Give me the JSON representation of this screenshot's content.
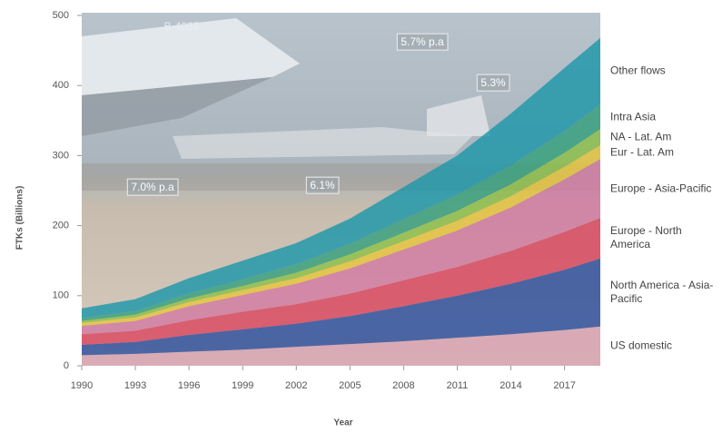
{
  "chart_data": {
    "type": "stacked_area",
    "y_label": "FTKs (Billions)",
    "x_label": "Year",
    "x": [
      1990,
      1993,
      1996,
      1999,
      2002,
      2005,
      2008,
      2011,
      2014,
      2017,
      2019
    ],
    "xlim": [
      1990,
      2019
    ],
    "xticks": [
      1990,
      1993,
      1996,
      1999,
      2002,
      2005,
      2008,
      2011,
      2014,
      2017
    ],
    "ylim": [
      0,
      500
    ],
    "yticks": [
      0,
      100,
      200,
      300,
      400,
      500
    ],
    "series": [
      {
        "name": "US domestic",
        "color": "#d9a3b3",
        "values": [
          15,
          17,
          20,
          23,
          27,
          31,
          35,
          40,
          45,
          51,
          56
        ]
      },
      {
        "name": "North America - Asia-Pacific",
        "color": "#2c4f9e",
        "values": [
          15,
          17,
          24,
          29,
          33,
          40,
          50,
          60,
          72,
          86,
          97
        ]
      },
      {
        "name": "Europe - North America",
        "color": "#d9475f",
        "values": [
          15,
          16,
          21,
          25,
          28,
          32,
          37,
          41,
          47,
          54,
          58
        ]
      },
      {
        "name": "Europe - Asia-Pacific",
        "color": "#d27ba2",
        "values": [
          12,
          14,
          20,
          24,
          29,
          36,
          44,
          52,
          62,
          75,
          84
        ]
      },
      {
        "name": "Eur - Lat. Am",
        "color": "#e6c63c",
        "values": [
          4,
          5,
          6,
          7,
          8,
          10,
          12,
          14,
          16,
          18,
          20
        ]
      },
      {
        "name": "NA - Lat. Am",
        "color": "#8cbf48",
        "values": [
          3,
          4,
          5,
          6,
          8,
          10,
          12,
          14,
          17,
          20,
          23
        ]
      },
      {
        "name": "Intra Asia",
        "color": "#35a07c",
        "values": [
          4,
          5,
          7,
          9,
          12,
          15,
          19,
          23,
          27,
          31,
          35
        ]
      },
      {
        "name": "Other flows",
        "color": "#1d97aa",
        "values": [
          14,
          17,
          22,
          27,
          30,
          36,
          46,
          56,
          74,
          90,
          95
        ]
      }
    ],
    "annotations": [
      "B-4035",
      "5.7% p.a",
      "5.3%",
      "7.0% p.a",
      "6.1%"
    ]
  }
}
